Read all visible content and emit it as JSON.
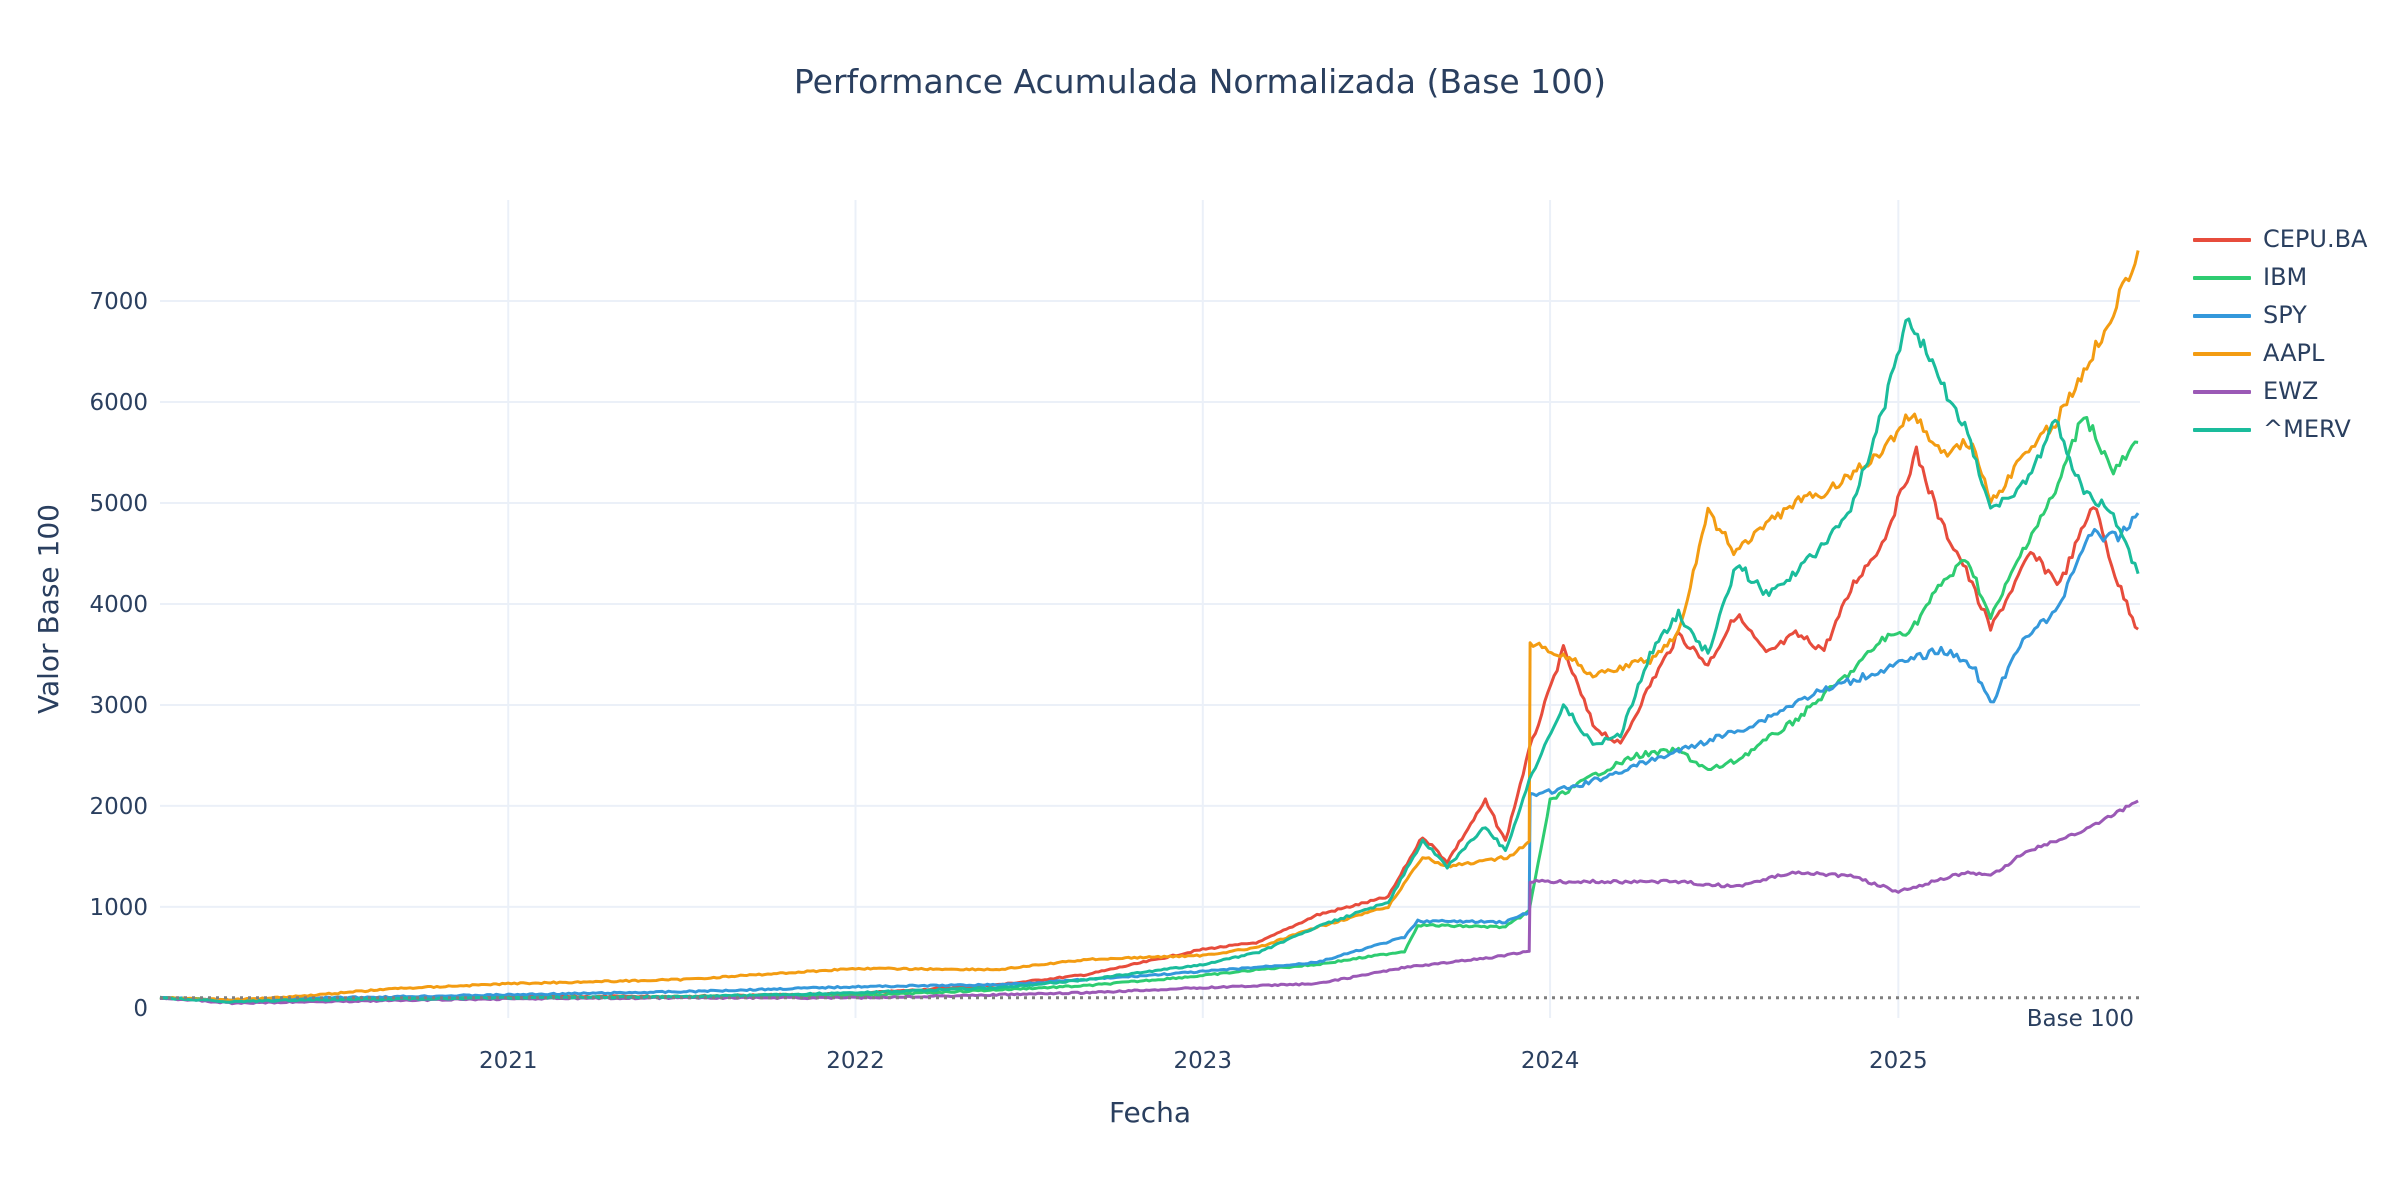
{
  "chart_data": {
    "type": "line",
    "title": "Performance Acumulada Normalizada (Base 100)",
    "xlabel": "Fecha",
    "ylabel": "Valor Base 100",
    "xlim": [
      "2020-01-01",
      "2025-09-12"
    ],
    "ylim": [
      -100,
      8000
    ],
    "x_ticks": [
      "2021",
      "2022",
      "2023",
      "2024",
      "2025"
    ],
    "y_ticks": [
      0,
      1000,
      2000,
      3000,
      4000,
      5000,
      6000,
      7000
    ],
    "grid": true,
    "legend_position": "right-top",
    "reference_line": {
      "value": 100,
      "style": "dotted",
      "color": "#7f7f7f",
      "label": "Base 100"
    },
    "series": [
      {
        "name": "CEPU.BA",
        "color": "#e74c3c",
        "points": [
          [
            "2020-01-01",
            100
          ],
          [
            "2020-03-20",
            70
          ],
          [
            "2020-06-01",
            80
          ],
          [
            "2021-01-01",
            110
          ],
          [
            "2021-07-01",
            115
          ],
          [
            "2022-01-01",
            140
          ],
          [
            "2022-06-01",
            230
          ],
          [
            "2022-09-01",
            330
          ],
          [
            "2023-01-01",
            580
          ],
          [
            "2023-03-01",
            650
          ],
          [
            "2023-05-01",
            920
          ],
          [
            "2023-07-15",
            1100
          ],
          [
            "2023-08-20",
            1700
          ],
          [
            "2023-09-15",
            1450
          ],
          [
            "2023-10-25",
            2050
          ],
          [
            "2023-11-15",
            1650
          ],
          [
            "2023-12-10",
            2550
          ],
          [
            "2024-01-15",
            3550
          ],
          [
            "2024-02-15",
            2800
          ],
          [
            "2024-03-15",
            2600
          ],
          [
            "2024-04-15",
            3200
          ],
          [
            "2024-05-15",
            3700
          ],
          [
            "2024-06-15",
            3400
          ],
          [
            "2024-07-15",
            3900
          ],
          [
            "2024-08-15",
            3500
          ],
          [
            "2024-09-15",
            3700
          ],
          [
            "2024-10-15",
            3550
          ],
          [
            "2024-11-15",
            4200
          ],
          [
            "2024-12-15",
            4600
          ],
          [
            "2025-01-20",
            5500
          ],
          [
            "2025-02-15",
            4800
          ],
          [
            "2025-03-10",
            4400
          ],
          [
            "2025-04-08",
            3750
          ],
          [
            "2025-05-20",
            4500
          ],
          [
            "2025-06-20",
            4200
          ],
          [
            "2025-07-25",
            5000
          ],
          [
            "2025-08-20",
            4200
          ],
          [
            "2025-09-10",
            3750
          ]
        ]
      },
      {
        "name": "IBM",
        "color": "#2ecc71",
        "points": [
          [
            "2020-01-01",
            100
          ],
          [
            "2020-03-20",
            75
          ],
          [
            "2020-06-01",
            90
          ],
          [
            "2021-01-01",
            100
          ],
          [
            "2021-07-01",
            110
          ],
          [
            "2022-01-01",
            120
          ],
          [
            "2022-06-01",
            180
          ],
          [
            "2022-09-01",
            220
          ],
          [
            "2023-01-01",
            320
          ],
          [
            "2023-03-01",
            380
          ],
          [
            "2023-05-01",
            430
          ],
          [
            "2023-08-01",
            560
          ],
          [
            "2023-08-15",
            820
          ],
          [
            "2023-11-15",
            800
          ],
          [
            "2023-12-10",
            960
          ],
          [
            "2024-01-01",
            2050
          ],
          [
            "2024-02-15",
            2300
          ],
          [
            "2024-04-01",
            2500
          ],
          [
            "2024-05-15",
            2550
          ],
          [
            "2024-06-15",
            2350
          ],
          [
            "2024-07-15",
            2450
          ],
          [
            "2024-08-15",
            2650
          ],
          [
            "2024-09-15",
            2850
          ],
          [
            "2024-10-15",
            3100
          ],
          [
            "2024-11-15",
            3350
          ],
          [
            "2024-12-15",
            3650
          ],
          [
            "2025-01-15",
            3750
          ],
          [
            "2025-02-15",
            4200
          ],
          [
            "2025-03-15",
            4450
          ],
          [
            "2025-04-08",
            3850
          ],
          [
            "2025-05-15",
            4600
          ],
          [
            "2025-06-15",
            5100
          ],
          [
            "2025-07-15",
            5900
          ],
          [
            "2025-08-15",
            5300
          ],
          [
            "2025-09-10",
            5600
          ]
        ]
      },
      {
        "name": "SPY",
        "color": "#3498db",
        "points": [
          [
            "2020-01-01",
            100
          ],
          [
            "2020-03-20",
            70
          ],
          [
            "2020-06-01",
            95
          ],
          [
            "2021-01-01",
            130
          ],
          [
            "2021-07-01",
            160
          ],
          [
            "2022-01-01",
            210
          ],
          [
            "2022-06-01",
            230
          ],
          [
            "2022-09-01",
            280
          ],
          [
            "2023-01-01",
            360
          ],
          [
            "2023-05-01",
            450
          ],
          [
            "2023-08-01",
            700
          ],
          [
            "2023-08-15",
            860
          ],
          [
            "2023-11-15",
            850
          ],
          [
            "2023-12-10",
            950
          ],
          [
            "2023-12-11",
            2100
          ],
          [
            "2024-02-01",
            2200
          ],
          [
            "2024-04-01",
            2400
          ],
          [
            "2024-06-01",
            2600
          ],
          [
            "2024-08-01",
            2800
          ],
          [
            "2024-10-01",
            3100
          ],
          [
            "2024-12-01",
            3300
          ],
          [
            "2025-02-15",
            3550
          ],
          [
            "2025-03-20",
            3400
          ],
          [
            "2025-04-08",
            3000
          ],
          [
            "2025-05-15",
            3700
          ],
          [
            "2025-06-15",
            3900
          ],
          [
            "2025-07-20",
            4700
          ],
          [
            "2025-08-20",
            4650
          ],
          [
            "2025-09-10",
            4900
          ]
        ]
      },
      {
        "name": "AAPL",
        "color": "#f39c12",
        "points": [
          [
            "2020-01-01",
            100
          ],
          [
            "2020-03-20",
            80
          ],
          [
            "2020-06-01",
            120
          ],
          [
            "2020-09-01",
            190
          ],
          [
            "2021-01-01",
            240
          ],
          [
            "2021-07-01",
            280
          ],
          [
            "2022-01-01",
            390
          ],
          [
            "2022-06-01",
            380
          ],
          [
            "2022-09-01",
            480
          ],
          [
            "2023-01-01",
            520
          ],
          [
            "2023-03-01",
            600
          ],
          [
            "2023-05-01",
            800
          ],
          [
            "2023-07-15",
            1000
          ],
          [
            "2023-08-20",
            1500
          ],
          [
            "2023-09-15",
            1400
          ],
          [
            "2023-10-25",
            1450
          ],
          [
            "2023-11-20",
            1500
          ],
          [
            "2023-12-10",
            1650
          ],
          [
            "2023-12-11",
            3600
          ],
          [
            "2024-01-15",
            3500
          ],
          [
            "2024-02-15",
            3300
          ],
          [
            "2024-04-15",
            3450
          ],
          [
            "2024-05-15",
            3700
          ],
          [
            "2024-06-15",
            4900
          ],
          [
            "2024-07-15",
            4500
          ],
          [
            "2024-08-15",
            4800
          ],
          [
            "2024-09-15",
            5000
          ],
          [
            "2024-10-15",
            5100
          ],
          [
            "2024-11-15",
            5300
          ],
          [
            "2024-12-15",
            5500
          ],
          [
            "2025-01-15",
            5900
          ],
          [
            "2025-02-15",
            5500
          ],
          [
            "2025-03-20",
            5600
          ],
          [
            "2025-04-08",
            5000
          ],
          [
            "2025-05-15",
            5500
          ],
          [
            "2025-06-15",
            5800
          ],
          [
            "2025-07-15",
            6300
          ],
          [
            "2025-08-15",
            6900
          ],
          [
            "2025-09-10",
            7500
          ]
        ]
      },
      {
        "name": "EWZ",
        "color": "#9b59b6",
        "points": [
          [
            "2020-01-01",
            100
          ],
          [
            "2020-03-20",
            45
          ],
          [
            "2020-06-01",
            60
          ],
          [
            "2021-01-01",
            90
          ],
          [
            "2021-07-01",
            100
          ],
          [
            "2022-01-01",
            100
          ],
          [
            "2022-06-01",
            130
          ],
          [
            "2022-09-01",
            150
          ],
          [
            "2023-01-01",
            200
          ],
          [
            "2023-05-01",
            240
          ],
          [
            "2023-08-01",
            400
          ],
          [
            "2023-11-01",
            500
          ],
          [
            "2023-12-10",
            560
          ],
          [
            "2023-12-11",
            1250
          ],
          [
            "2024-02-15",
            1250
          ],
          [
            "2024-05-15",
            1250
          ],
          [
            "2024-07-15",
            1200
          ],
          [
            "2024-09-15",
            1350
          ],
          [
            "2024-11-15",
            1300
          ],
          [
            "2025-01-01",
            1150
          ],
          [
            "2025-03-15",
            1350
          ],
          [
            "2025-04-08",
            1300
          ],
          [
            "2025-05-15",
            1550
          ],
          [
            "2025-07-15",
            1750
          ],
          [
            "2025-09-10",
            2050
          ]
        ]
      },
      {
        "name": "^MERV",
        "color": "#1abc9c",
        "points": [
          [
            "2020-01-01",
            100
          ],
          [
            "2020-03-20",
            60
          ],
          [
            "2020-06-01",
            80
          ],
          [
            "2021-01-01",
            100
          ],
          [
            "2021-07-01",
            110
          ],
          [
            "2022-01-01",
            150
          ],
          [
            "2022-06-01",
            200
          ],
          [
            "2022-09-01",
            280
          ],
          [
            "2023-01-01",
            430
          ],
          [
            "2023-03-01",
            550
          ],
          [
            "2023-05-01",
            800
          ],
          [
            "2023-07-15",
            1050
          ],
          [
            "2023-08-20",
            1650
          ],
          [
            "2023-09-15",
            1400
          ],
          [
            "2023-10-25",
            1800
          ],
          [
            "2023-11-15",
            1550
          ],
          [
            "2023-12-10",
            2250
          ],
          [
            "2024-01-15",
            3000
          ],
          [
            "2024-02-15",
            2600
          ],
          [
            "2024-03-15",
            2700
          ],
          [
            "2024-04-15",
            3500
          ],
          [
            "2024-05-15",
            3900
          ],
          [
            "2024-06-15",
            3500
          ],
          [
            "2024-07-15",
            4400
          ],
          [
            "2024-08-15",
            4100
          ],
          [
            "2024-09-15",
            4300
          ],
          [
            "2024-10-15",
            4600
          ],
          [
            "2024-11-15",
            5000
          ],
          [
            "2024-12-15",
            5900
          ],
          [
            "2025-01-12",
            6850
          ],
          [
            "2025-02-15",
            6200
          ],
          [
            "2025-03-15",
            5700
          ],
          [
            "2025-04-08",
            4900
          ],
          [
            "2025-05-15",
            5200
          ],
          [
            "2025-06-15",
            5800
          ],
          [
            "2025-07-15",
            5100
          ],
          [
            "2025-08-15",
            4900
          ],
          [
            "2025-09-10",
            4300
          ]
        ]
      }
    ]
  }
}
